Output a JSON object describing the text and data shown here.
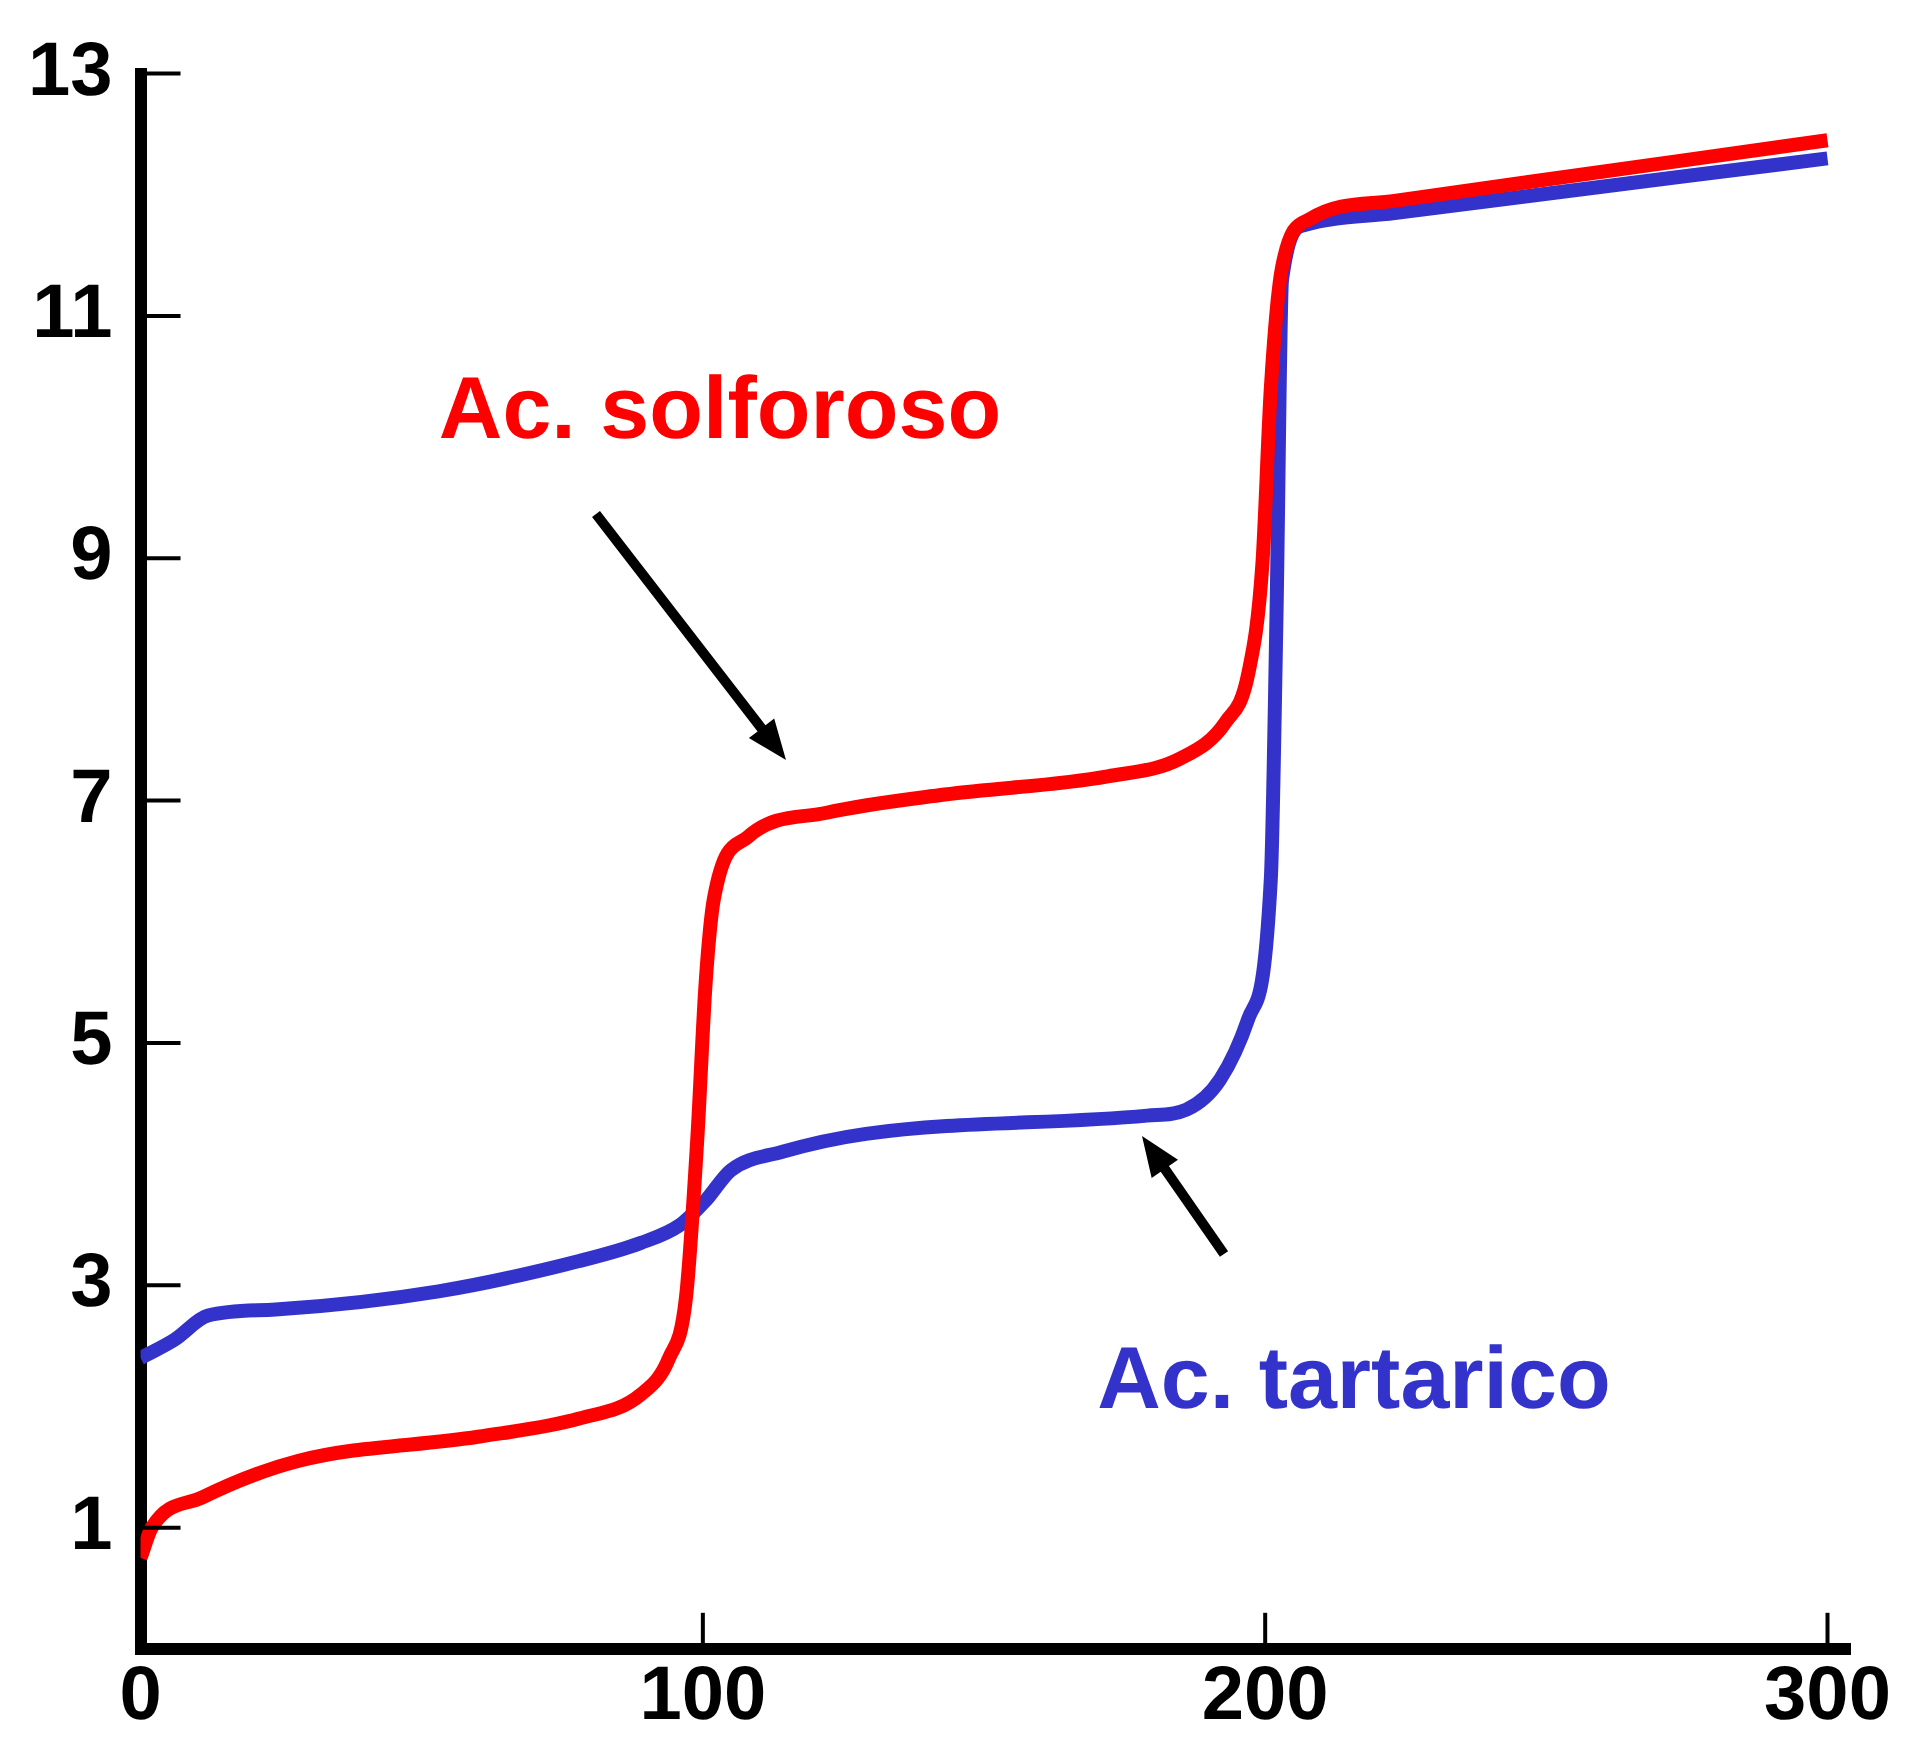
{
  "chart_data": {
    "type": "line",
    "xlim": [
      0,
      304
    ],
    "xticks": [
      0,
      100,
      200,
      300
    ],
    "ylim": [
      0,
      13
    ],
    "yticks": [
      1,
      3,
      5,
      7,
      9,
      11,
      13
    ],
    "grid": false,
    "legend": false,
    "marker": "none",
    "line_style": "solid",
    "series": [
      {
        "name": "Ac. solforoso",
        "color": "#ff0000",
        "x": [
          0,
          2,
          11,
          28,
          60,
          78,
          89,
          94,
          97,
          99,
          100.5,
          102,
          108,
          122,
          143,
          172,
          185,
          193,
          197,
          199.5,
          201,
          203,
          208,
          223,
          300
        ],
        "values": [
          0.75,
          1.0,
          1.25,
          1.55,
          1.75,
          1.9,
          2.1,
          2.4,
          2.9,
          4.2,
          5.5,
          6.2,
          6.7,
          6.9,
          7.05,
          7.2,
          7.35,
          7.65,
          8.05,
          8.95,
          10.4,
          11.4,
          11.8,
          11.95,
          12.45
        ]
      },
      {
        "name": "Ac. tartarico",
        "color": "#3333cc",
        "x": [
          0,
          6,
          12,
          24,
          53,
          78,
          89,
          96,
          100.5,
          105,
          114,
          129,
          179,
          186,
          192,
          197,
          201,
          202,
          203,
          207,
          223,
          300
        ],
        "values": [
          2.4,
          2.55,
          2.75,
          2.8,
          2.95,
          3.2,
          3.35,
          3.5,
          3.7,
          3.95,
          4.1,
          4.25,
          4.4,
          4.45,
          4.7,
          5.2,
          6.35,
          8.5,
          11.3,
          11.75,
          11.85,
          12.3
        ]
      }
    ]
  }
}
